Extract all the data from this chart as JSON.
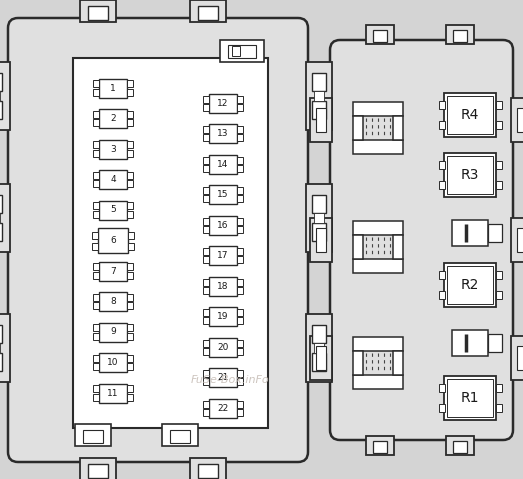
{
  "bg": "#d4d4d4",
  "panel_bg": "#e0e0e0",
  "white": "#ffffff",
  "oc": "#2a2a2a",
  "watermark": "FuSe-Box.inFo",
  "wm_color": "#c8bfb8",
  "left_fuses": [
    1,
    2,
    3,
    4,
    5,
    6,
    7,
    8,
    9,
    10,
    11
  ],
  "right_fuses": [
    12,
    13,
    14,
    15,
    16,
    17,
    18,
    19,
    20,
    21,
    22
  ],
  "relay_labels": [
    "R4",
    "R3",
    "R2",
    "R1"
  ]
}
